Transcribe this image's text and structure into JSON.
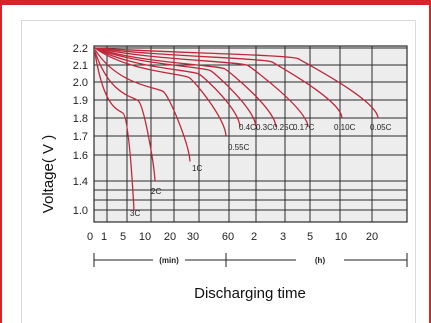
{
  "colors": {
    "accent": "#d8232a",
    "curve": "#c0283a",
    "grid": "#2b2b2b",
    "plot_bg": "#ededed"
  },
  "chart_data": {
    "type": "line",
    "title": "",
    "ylabel": "Voltage( V )",
    "xlabel": "Discharging time",
    "y_ticks": [
      "2.2",
      "2.1",
      "2.0",
      "1.9",
      "1.8",
      "1.7",
      "1.6",
      "1.4",
      "1.0"
    ],
    "x_ticks": [
      "0",
      "1",
      "5",
      "10",
      "20",
      "30",
      "60",
      "2",
      "3",
      "5",
      "10",
      "20"
    ],
    "x_units": [
      "(min)",
      "(h)"
    ],
    "grid": true,
    "series": [
      {
        "name": "3C",
        "end_time": "7 min",
        "end_voltage": 1.0
      },
      {
        "name": "2C",
        "end_time": "14 min",
        "end_voltage": 1.4
      },
      {
        "name": "1C",
        "end_time": "30 min",
        "end_voltage": 1.55
      },
      {
        "name": "0.55C",
        "end_time": "1.1 h",
        "end_voltage": 1.7
      },
      {
        "name": "0.4C",
        "end_time": "1.5 h",
        "end_voltage": 1.75
      },
      {
        "name": "0.3C",
        "end_time": "2 h",
        "end_voltage": 1.75
      },
      {
        "name": "0.25C",
        "end_time": "2.5 h",
        "end_voltage": 1.75
      },
      {
        "name": "0.17C",
        "end_time": "4 h",
        "end_voltage": 1.75
      },
      {
        "name": "0.10C",
        "end_time": "9 h",
        "end_voltage": 1.8
      },
      {
        "name": "0.05C",
        "end_time": "20 h",
        "end_voltage": 1.8
      }
    ]
  }
}
